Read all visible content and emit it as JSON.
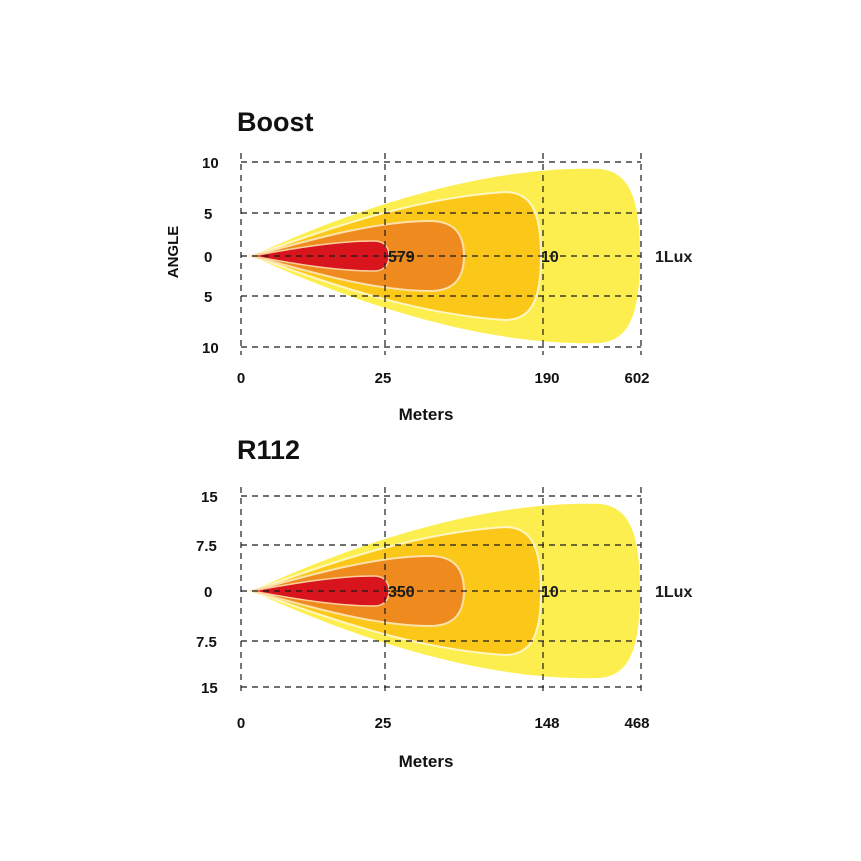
{
  "chart_data": [
    {
      "type": "area",
      "title": "Boost",
      "xlabel": "Meters",
      "ylabel": "ANGLE",
      "x_ticks": [
        "0",
        "25",
        "190",
        "602"
      ],
      "y_ticks": [
        "10",
        "5",
        "0",
        "5",
        "10"
      ],
      "isolux_zones": [
        {
          "label": "579",
          "color": "#d8141c"
        },
        {
          "label": "",
          "color": "#ee8a1e"
        },
        {
          "label": "10",
          "color": "#fbc81a"
        },
        {
          "label": "1Lux",
          "color": "#fdee50"
        }
      ]
    },
    {
      "type": "area",
      "title": "R112",
      "xlabel": "Meters",
      "ylabel": "",
      "x_ticks": [
        "0",
        "25",
        "148",
        "468"
      ],
      "y_ticks": [
        "15",
        "7.5",
        "0",
        "7.5",
        "15"
      ],
      "isolux_zones": [
        {
          "label": "350",
          "color": "#d8141c"
        },
        {
          "label": "",
          "color": "#ee8a1e"
        },
        {
          "label": "10",
          "color": "#fbc81a"
        },
        {
          "label": "1Lux",
          "color": "#fdee50"
        }
      ]
    }
  ]
}
